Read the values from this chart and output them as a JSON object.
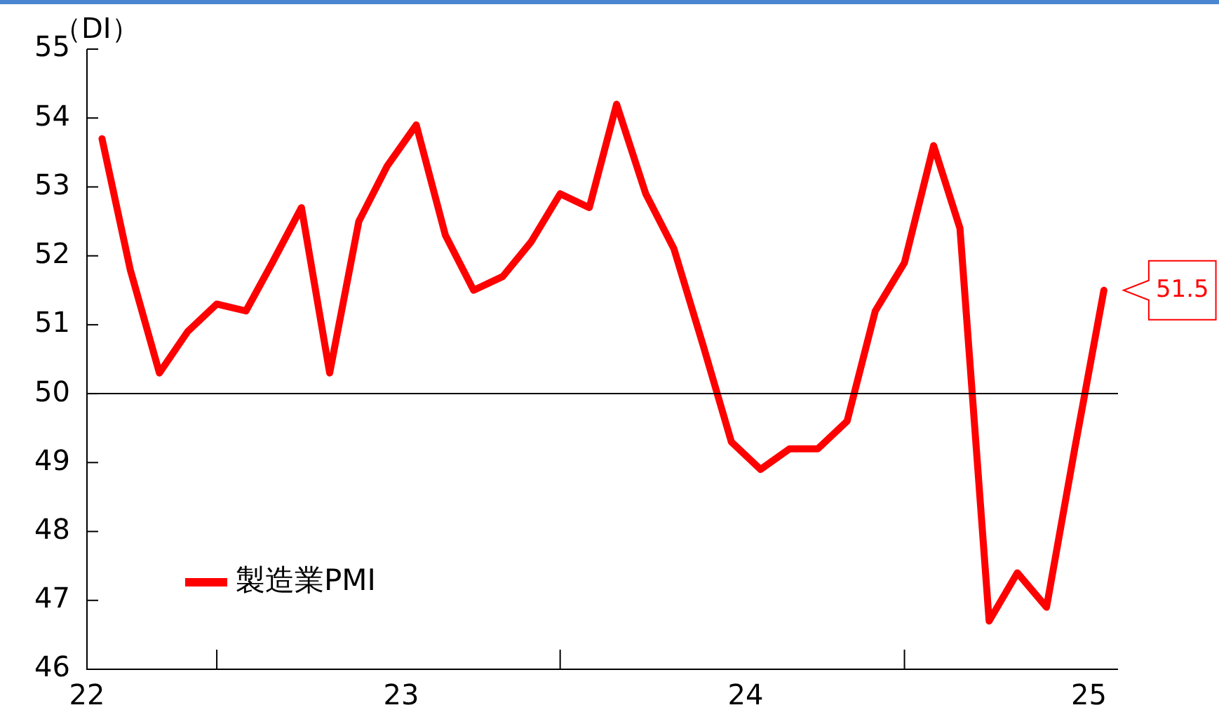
{
  "chart_data": {
    "type": "line",
    "ylabel": "（DI）",
    "x": [
      "2022-09",
      "2022-10",
      "2022-11",
      "2022-12",
      "2023-01",
      "2023-02",
      "2023-03",
      "2023-04",
      "2023-05",
      "2023-06",
      "2023-07",
      "2023-08",
      "2023-09",
      "2023-10",
      "2023-11",
      "2023-12",
      "2024-01",
      "2024-02",
      "2024-03",
      "2024-04",
      "2024-05",
      "2024-06",
      "2024-07",
      "2024-08",
      "2024-09",
      "2024-10",
      "2024-11",
      "2024-12",
      "2025-01",
      "2025-02",
      "2025-03",
      "2025-04",
      "2025-05",
      "2025-06",
      "2025-07",
      "2025-08"
    ],
    "series": [
      {
        "name": "製造業PMI",
        "color": "#ff0000",
        "values": [
          53.7,
          51.8,
          50.3,
          50.9,
          51.3,
          51.2,
          51.9,
          52.7,
          50.3,
          52.5,
          53.3,
          53.9,
          52.3,
          51.5,
          51.7,
          52.2,
          52.9,
          52.7,
          54.2,
          52.9,
          52.1,
          50.7,
          49.3,
          48.9,
          49.2,
          49.2,
          49.6,
          51.2,
          51.9,
          53.6,
          52.4,
          46.7,
          47.4,
          46.9,
          49.2,
          51.5
        ]
      }
    ],
    "xlim": [
      "2022-08-16",
      "2025-08-16"
    ],
    "xticks": [
      {
        "value": "2022-08-16",
        "label": "22"
      },
      {
        "value": "2023-01-01",
        "label": null
      },
      {
        "value": "2023-07-16",
        "label": "23"
      },
      {
        "value": "2024-01-01",
        "label": null
      },
      {
        "value": "2024-07-16",
        "label": "24"
      },
      {
        "value": "2025-01-01",
        "label": null
      },
      {
        "value": "2025-07-16",
        "label": "25"
      }
    ],
    "ylim": [
      46,
      55
    ],
    "yticks": [
      46,
      47,
      48,
      49,
      50,
      51,
      52,
      53,
      54,
      55
    ],
    "ref_lines": [
      {
        "axis": "y",
        "value": 50,
        "color": "#000000"
      }
    ],
    "annotations": [
      {
        "text": "51.5",
        "x": "2025-08",
        "y": 51.5
      }
    ],
    "legend": "bottom left",
    "grid": false,
    "marker": "none",
    "line_style": "solid"
  }
}
